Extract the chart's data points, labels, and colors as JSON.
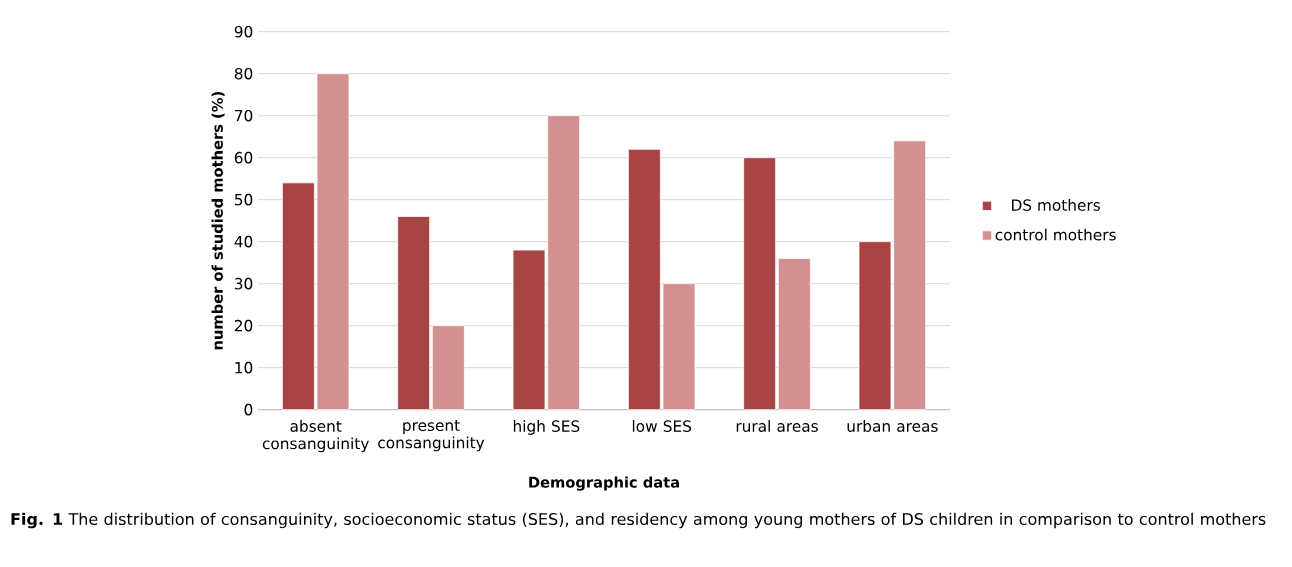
{
  "chart_data": {
    "type": "bar",
    "xlabel": "Demographic data",
    "ylabel": "number of studied mothers (%)",
    "categories": [
      "absent consanguinity",
      "present consanguinity",
      "high SES",
      "low SES",
      "rural areas",
      "urban areas"
    ],
    "series": [
      {
        "name": "DS mothers",
        "color": "#a84444",
        "values": [
          54,
          46,
          38,
          62,
          60,
          40
        ]
      },
      {
        "name": "control mothers",
        "color": "#d29090",
        "values": [
          80,
          20,
          70,
          30,
          36,
          64
        ]
      }
    ],
    "ylim": [
      0,
      90
    ],
    "yticks": [
      0,
      10,
      20,
      30,
      40,
      50,
      60,
      70,
      80,
      90
    ],
    "grid": "y",
    "legend": "right",
    "annotations": [
      "**Fig. 1** The distribution of consanguinity, socioeconomic status (SES), and residency among young mothers of DS children in comparison to control mothers"
    ]
  }
}
